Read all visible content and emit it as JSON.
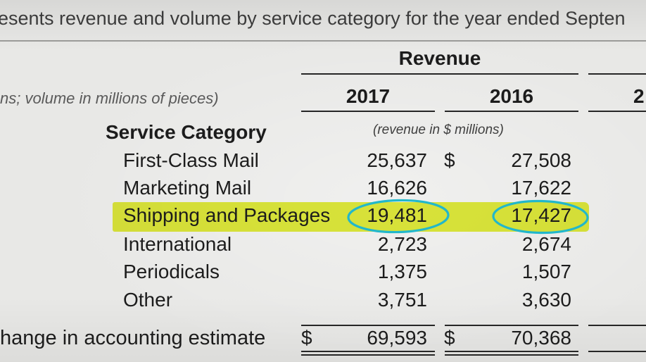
{
  "document": {
    "intro_text": "esents revenue and volume by service category for the year ended Septen",
    "units_note_left": "ns; volume in millions of pieces)",
    "colors": {
      "paper": "#e8e8e6",
      "ink": "#1c1c1c",
      "highlight": "#e4f02c",
      "circle": "#22b7cb"
    }
  },
  "table": {
    "group_header": "Revenue",
    "years": [
      "2017",
      "2016"
    ],
    "next_year_partial": "2",
    "category_heading": "Service Category",
    "units_note": "(revenue in $ millions)",
    "rows": [
      {
        "label": "First-Class Mail",
        "values": [
          "25,637",
          "27,508"
        ],
        "currency_2016": "$"
      },
      {
        "label": "Marketing Mail",
        "values": [
          "16,626",
          "17,622"
        ]
      },
      {
        "label": "Shipping and Packages",
        "values": [
          "19,481",
          "17,427"
        ],
        "highlighted": true,
        "circled": true
      },
      {
        "label": "International",
        "values": [
          "2,723",
          "2,674"
        ]
      },
      {
        "label": "Periodicals",
        "values": [
          "1,375",
          "1,507"
        ]
      },
      {
        "label": "Other",
        "values": [
          "3,751",
          "3,630"
        ]
      }
    ],
    "total": {
      "label": "hange in accounting estimate",
      "currency_2017": "$",
      "currency_2016": "$",
      "values": [
        "69,593",
        "70,368"
      ]
    }
  }
}
